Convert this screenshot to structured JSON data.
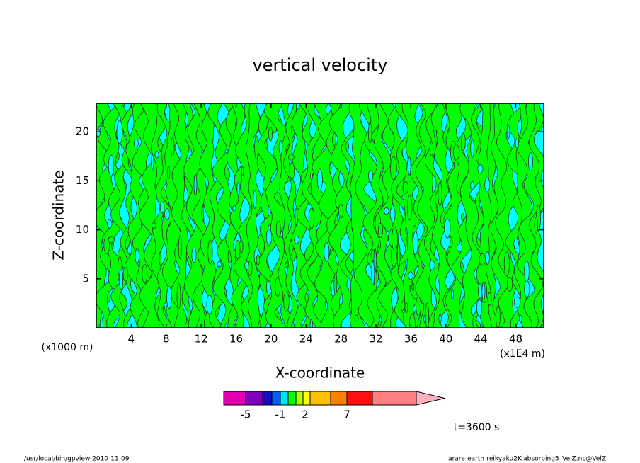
{
  "chart_data": {
    "type": "contour",
    "title": "vertical velocity",
    "xlabel": "X-coordinate",
    "ylabel": "Z-coordinate",
    "xunit": "(x1000 m)",
    "xunit2": "(x1E4 m)",
    "xlim": [
      0,
      51.2
    ],
    "ylim": [
      0,
      22.9
    ],
    "xticks": [
      4,
      8,
      12,
      16,
      20,
      24,
      28,
      32,
      36,
      40,
      44,
      48
    ],
    "yticks": [
      5,
      10,
      15,
      20
    ],
    "field_colors": [
      "#00ffff",
      "#00ff00"
    ],
    "colorbar": {
      "colors": [
        "#e000b0",
        "#8000c0",
        "#1010c0",
        "#0060ff",
        "#00e0ff",
        "#00ff00",
        "#b0ff00",
        "#ffff00",
        "#ffc000",
        "#ff8000",
        "#ff1010",
        "#ff8080"
      ],
      "extend_color": "#ffb0c0",
      "ticks": [
        -5,
        -1,
        2,
        7
      ]
    },
    "time_label": "t=3600 s",
    "footer_left": "/usr/local/bin/gpview   2010-11-09",
    "footer_right": "arare-earth-reikyaku2K-absorbing5_VelZ.nc@VelZ"
  }
}
